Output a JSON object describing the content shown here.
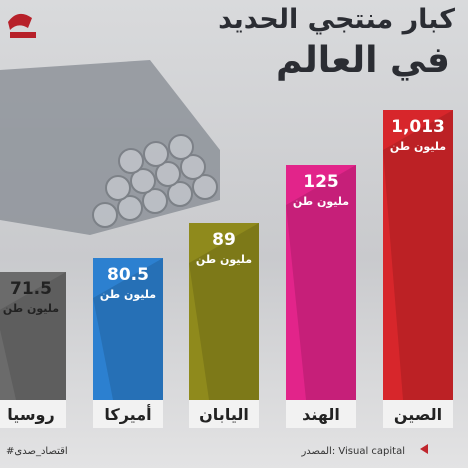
{
  "title": {
    "line1": "كبار منتجي الحديد",
    "line2": "في العالم"
  },
  "items": [
    {
      "label": "الصين",
      "value": "1,013",
      "unit": "مليون طن",
      "color": "#d7262b"
    },
    {
      "label": "الهند",
      "value": "125",
      "unit": "مليون طن",
      "color": "#e2248a"
    },
    {
      "label": "اليابان",
      "value": "89",
      "unit": "مليون طن",
      "color": "#8f8a1c"
    },
    {
      "label": "أميركا",
      "value": "80.5",
      "unit": "مليون طن",
      "color": "#2c80d0"
    },
    {
      "label": "روسيا",
      "value": "71.5",
      "unit": "مليون طن",
      "color": "#6b6b6b"
    }
  ],
  "footer": {
    "source": "المصدر: Visual capital",
    "hashtag": "#اقتصاد_صدى"
  }
}
